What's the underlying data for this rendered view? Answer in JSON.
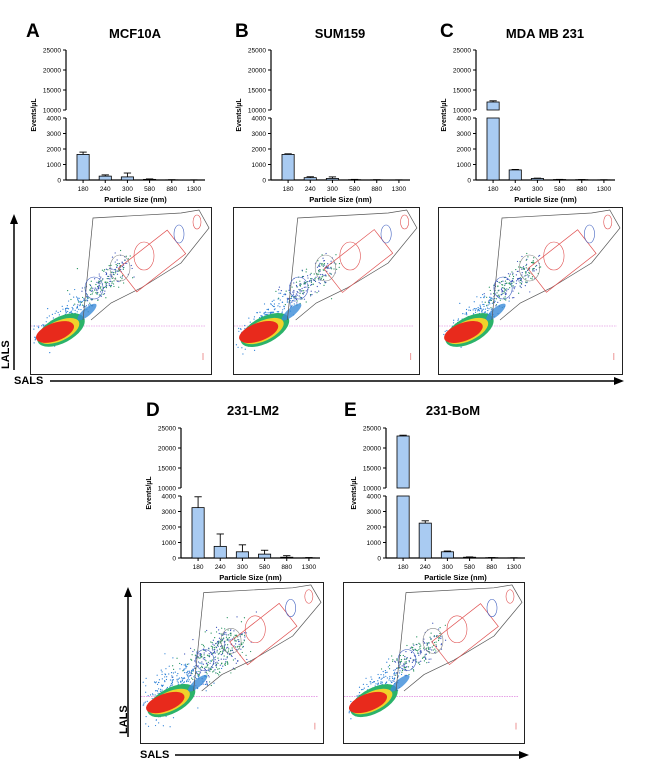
{
  "panels": [
    {
      "letter": "A",
      "title": "MCF10A"
    },
    {
      "letter": "B",
      "title": "SUM159"
    },
    {
      "letter": "C",
      "title": "MDA MB 231"
    },
    {
      "letter": "D",
      "title": "231-LM2"
    },
    {
      "letter": "E",
      "title": "231-BoM"
    }
  ],
  "axes": {
    "x_label": "Particle Size (nm)",
    "y_label": "Events/µL",
    "flow_x": "SALS",
    "flow_y": "LALS"
  },
  "chart_data": [
    {
      "type": "bar",
      "title": "MCF10A",
      "xlabel": "Particle Size (nm)",
      "ylabel": "Events/µL",
      "categories": [
        "180",
        "240",
        "300",
        "580",
        "880",
        "1300"
      ],
      "values": [
        1650,
        250,
        200,
        40,
        10,
        5
      ],
      "errors": [
        150,
        80,
        250,
        30,
        10,
        5
      ],
      "ylim_lower": [
        0,
        4000
      ],
      "ylim_upper": [
        10000,
        25000
      ],
      "yticks_lower": [
        0,
        1000,
        2000,
        3000,
        4000
      ],
      "yticks_upper": [
        10000,
        15000,
        20000,
        25000
      ],
      "color": "#a9cbf2"
    },
    {
      "type": "bar",
      "title": "SUM159",
      "xlabel": "Particle Size (nm)",
      "ylabel": "Events/µL",
      "categories": [
        "180",
        "240",
        "300",
        "580",
        "880",
        "1300"
      ],
      "values": [
        1650,
        150,
        100,
        20,
        10,
        5
      ],
      "errors": [
        40,
        60,
        100,
        20,
        10,
        5
      ],
      "ylim_lower": [
        0,
        4000
      ],
      "ylim_upper": [
        10000,
        25000
      ],
      "yticks_lower": [
        0,
        1000,
        2000,
        3000,
        4000
      ],
      "yticks_upper": [
        10000,
        15000,
        20000,
        25000
      ],
      "color": "#a9cbf2"
    },
    {
      "type": "bar",
      "title": "MDA MB 231",
      "xlabel": "Particle Size (nm)",
      "ylabel": "Events/µL",
      "categories": [
        "180",
        "240",
        "300",
        "580",
        "880",
        "1300"
      ],
      "values": [
        12000,
        650,
        100,
        30,
        20,
        10
      ],
      "errors": [
        300,
        30,
        20,
        10,
        10,
        5
      ],
      "ylim_lower": [
        0,
        4000
      ],
      "ylim_upper": [
        10000,
        25000
      ],
      "yticks_lower": [
        0,
        1000,
        2000,
        3000,
        4000
      ],
      "yticks_upper": [
        10000,
        15000,
        20000,
        25000
      ],
      "color": "#a9cbf2"
    },
    {
      "type": "bar",
      "title": "231-LM2",
      "xlabel": "Particle Size (nm)",
      "ylabel": "Events/µL",
      "categories": [
        "180",
        "240",
        "300",
        "580",
        "880",
        "1300"
      ],
      "values": [
        3250,
        750,
        400,
        250,
        50,
        10
      ],
      "errors": [
        700,
        800,
        450,
        250,
        100,
        20
      ],
      "ylim_lower": [
        0,
        4000
      ],
      "ylim_upper": [
        10000,
        25000
      ],
      "yticks_lower": [
        0,
        1000,
        2000,
        3000,
        4000
      ],
      "yticks_upper": [
        10000,
        15000,
        20000,
        25000
      ],
      "color": "#a9cbf2"
    },
    {
      "type": "bar",
      "title": "231-BoM",
      "xlabel": "Particle Size (nm)",
      "ylabel": "Events/µL",
      "categories": [
        "180",
        "240",
        "300",
        "580",
        "880",
        "1300"
      ],
      "values": [
        23000,
        2250,
        400,
        50,
        20,
        10
      ],
      "errors": [
        200,
        150,
        50,
        20,
        10,
        5
      ],
      "ylim_lower": [
        0,
        4000
      ],
      "ylim_upper": [
        10000,
        25000
      ],
      "yticks_lower": [
        0,
        1000,
        2000,
        3000,
        4000
      ],
      "yticks_upper": [
        10000,
        15000,
        20000,
        25000
      ],
      "color": "#a9cbf2"
    }
  ]
}
